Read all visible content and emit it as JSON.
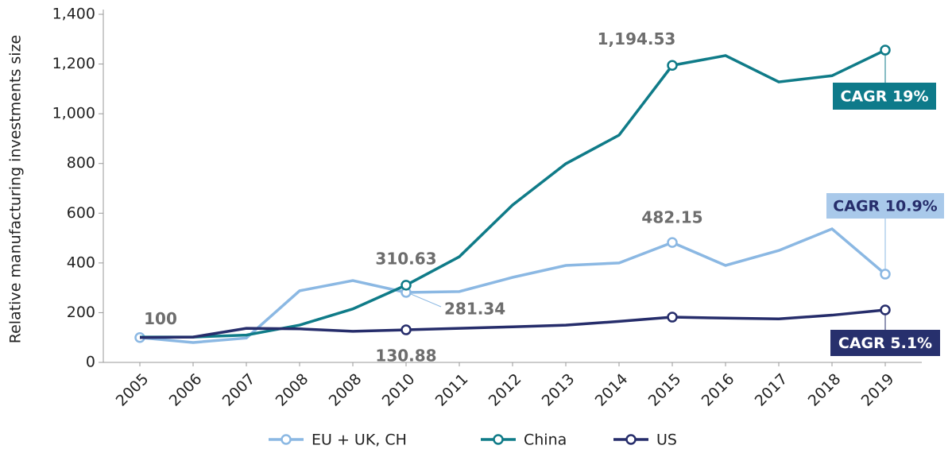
{
  "chart_data": {
    "type": "line",
    "y_label": "Relative manufacturing investments size",
    "categories": [
      "2005",
      "2006",
      "2007",
      "2008",
      "2008",
      "2010",
      "2011",
      "2012",
      "2013",
      "2014",
      "2015",
      "2016",
      "2017",
      "2018",
      "2019"
    ],
    "ylim": [
      0,
      1400
    ],
    "yticks": [
      0,
      200,
      400,
      600,
      800,
      {
        "value": 1000,
        "label": "1,000"
      },
      {
        "value": 1200,
        "label": "1,200"
      },
      {
        "value": 1400,
        "label": "1,400"
      }
    ],
    "series": [
      {
        "name": "EU + UK, CH",
        "color": "#8bb8e3",
        "cagr": "CAGR 10.9%",
        "values": [
          100,
          80,
          98,
          288,
          329,
          281.34,
          285,
          342,
          390,
          400,
          482.15,
          390,
          450,
          537,
          355
        ],
        "value_labels": [
          "100",
          null,
          null,
          null,
          null,
          "281.34",
          null,
          null,
          null,
          null,
          "482.15",
          null,
          null,
          null,
          null
        ]
      },
      {
        "name": "China",
        "color": "#0f7b88",
        "cagr": "CAGR 19%",
        "values": [
          102,
          102,
          110,
          150,
          215,
          310.63,
          425,
          633,
          799,
          914,
          1194.53,
          1234,
          1128,
          1153,
          1256
        ],
        "value_labels": [
          null,
          null,
          null,
          null,
          null,
          "310.63",
          null,
          null,
          null,
          null,
          "1,194.53",
          null,
          null,
          null,
          null
        ]
      },
      {
        "name": "US",
        "color": "#262d6b",
        "cagr": "CAGR 5.1%",
        "values": [
          100,
          102,
          137,
          135,
          125,
          130.88,
          137,
          143,
          150,
          165,
          182,
          178,
          175,
          190,
          211
        ],
        "value_labels": [
          null,
          null,
          null,
          null,
          null,
          "130.88",
          null,
          null,
          null,
          null,
          null,
          null,
          null,
          null,
          null
        ]
      }
    ]
  }
}
